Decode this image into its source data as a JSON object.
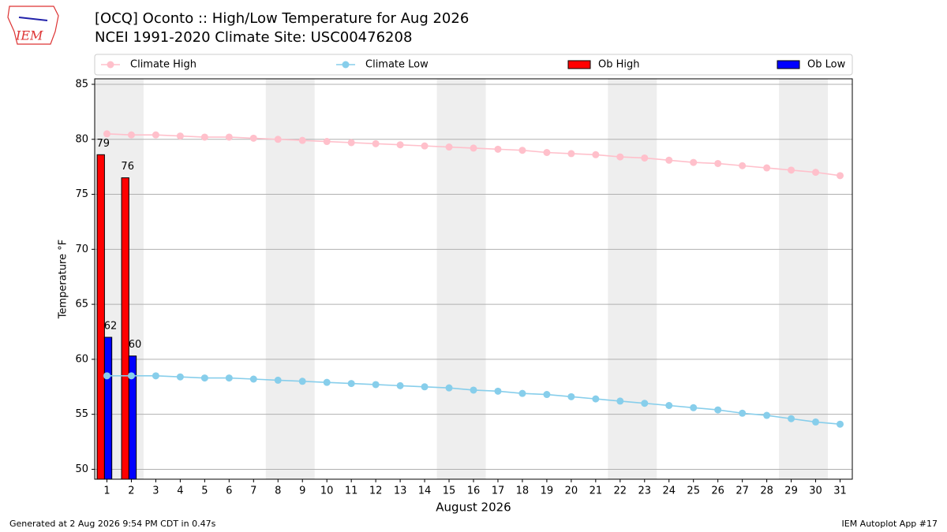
{
  "logo": "IEM",
  "footer_left": "Generated at 2 Aug 2026 9:54 PM CDT in 0.47s",
  "footer_right": "IEM Autoplot App #17",
  "chart_data": {
    "type": "bar_line",
    "title": "[OCQ] Oconto :: High/Low Temperature for Aug 2026",
    "subtitle": "NCEI 1991-2020 Climate Site: USC00476208",
    "xlabel": "August 2026",
    "ylabel": "Temperature °F",
    "x": [
      1,
      2,
      3,
      4,
      5,
      6,
      7,
      8,
      9,
      10,
      11,
      12,
      13,
      14,
      15,
      16,
      17,
      18,
      19,
      20,
      21,
      22,
      23,
      24,
      25,
      26,
      27,
      28,
      29,
      30,
      31
    ],
    "xlim": [
      0.5,
      31.5
    ],
    "xticks": [
      1,
      2,
      3,
      4,
      5,
      6,
      7,
      8,
      9,
      10,
      11,
      12,
      13,
      14,
      15,
      16,
      17,
      18,
      19,
      20,
      21,
      22,
      23,
      24,
      25,
      26,
      27,
      28,
      29,
      30,
      31
    ],
    "ylim": [
      49.1,
      85.5
    ],
    "yticks": [
      50,
      55,
      60,
      65,
      70,
      75,
      80,
      85
    ],
    "grid": true,
    "weekend_bands": [
      [
        0.5,
        2.5
      ],
      [
        7.5,
        9.5
      ],
      [
        14.5,
        16.5
      ],
      [
        21.5,
        23.5
      ],
      [
        28.5,
        30.5
      ]
    ],
    "series": [
      {
        "name": "Climate High",
        "kind": "line",
        "color": "#ffc0cb",
        "values": [
          80.5,
          80.4,
          80.4,
          80.3,
          80.2,
          80.2,
          80.1,
          80.0,
          79.9,
          79.8,
          79.7,
          79.6,
          79.5,
          79.4,
          79.3,
          79.2,
          79.1,
          79.0,
          78.8,
          78.7,
          78.6,
          78.4,
          78.3,
          78.1,
          77.9,
          77.8,
          77.6,
          77.4,
          77.2,
          77.0,
          76.7
        ]
      },
      {
        "name": "Climate Low",
        "kind": "line",
        "color": "#87ceeb",
        "values": [
          58.5,
          58.5,
          58.5,
          58.4,
          58.3,
          58.3,
          58.2,
          58.1,
          58.0,
          57.9,
          57.8,
          57.7,
          57.6,
          57.5,
          57.4,
          57.2,
          57.1,
          56.9,
          56.8,
          56.6,
          56.4,
          56.2,
          56.0,
          55.8,
          55.6,
          55.4,
          55.1,
          54.9,
          54.6,
          54.3,
          54.1
        ]
      },
      {
        "name": "Ob High",
        "kind": "bar",
        "color": "#ff0000",
        "values": [
          78.6,
          76.5,
          null,
          null,
          null,
          null,
          null,
          null,
          null,
          null,
          null,
          null,
          null,
          null,
          null,
          null,
          null,
          null,
          null,
          null,
          null,
          null,
          null,
          null,
          null,
          null,
          null,
          null,
          null,
          null,
          null
        ],
        "value_labels": [
          "79",
          "76",
          null,
          null,
          null,
          null,
          null,
          null,
          null,
          null,
          null,
          null,
          null,
          null,
          null,
          null,
          null,
          null,
          null,
          null,
          null,
          null,
          null,
          null,
          null,
          null,
          null,
          null,
          null,
          null,
          null
        ]
      },
      {
        "name": "Ob Low",
        "kind": "bar",
        "color": "#0000ff",
        "values": [
          62.0,
          60.3,
          null,
          null,
          null,
          null,
          null,
          null,
          null,
          null,
          null,
          null,
          null,
          null,
          null,
          null,
          null,
          null,
          null,
          null,
          null,
          null,
          null,
          null,
          null,
          null,
          null,
          null,
          null,
          null,
          null
        ],
        "value_labels": [
          "62",
          "60",
          null,
          null,
          null,
          null,
          null,
          null,
          null,
          null,
          null,
          null,
          null,
          null,
          null,
          null,
          null,
          null,
          null,
          null,
          null,
          null,
          null,
          null,
          null,
          null,
          null,
          null,
          null,
          null,
          null
        ]
      }
    ]
  }
}
